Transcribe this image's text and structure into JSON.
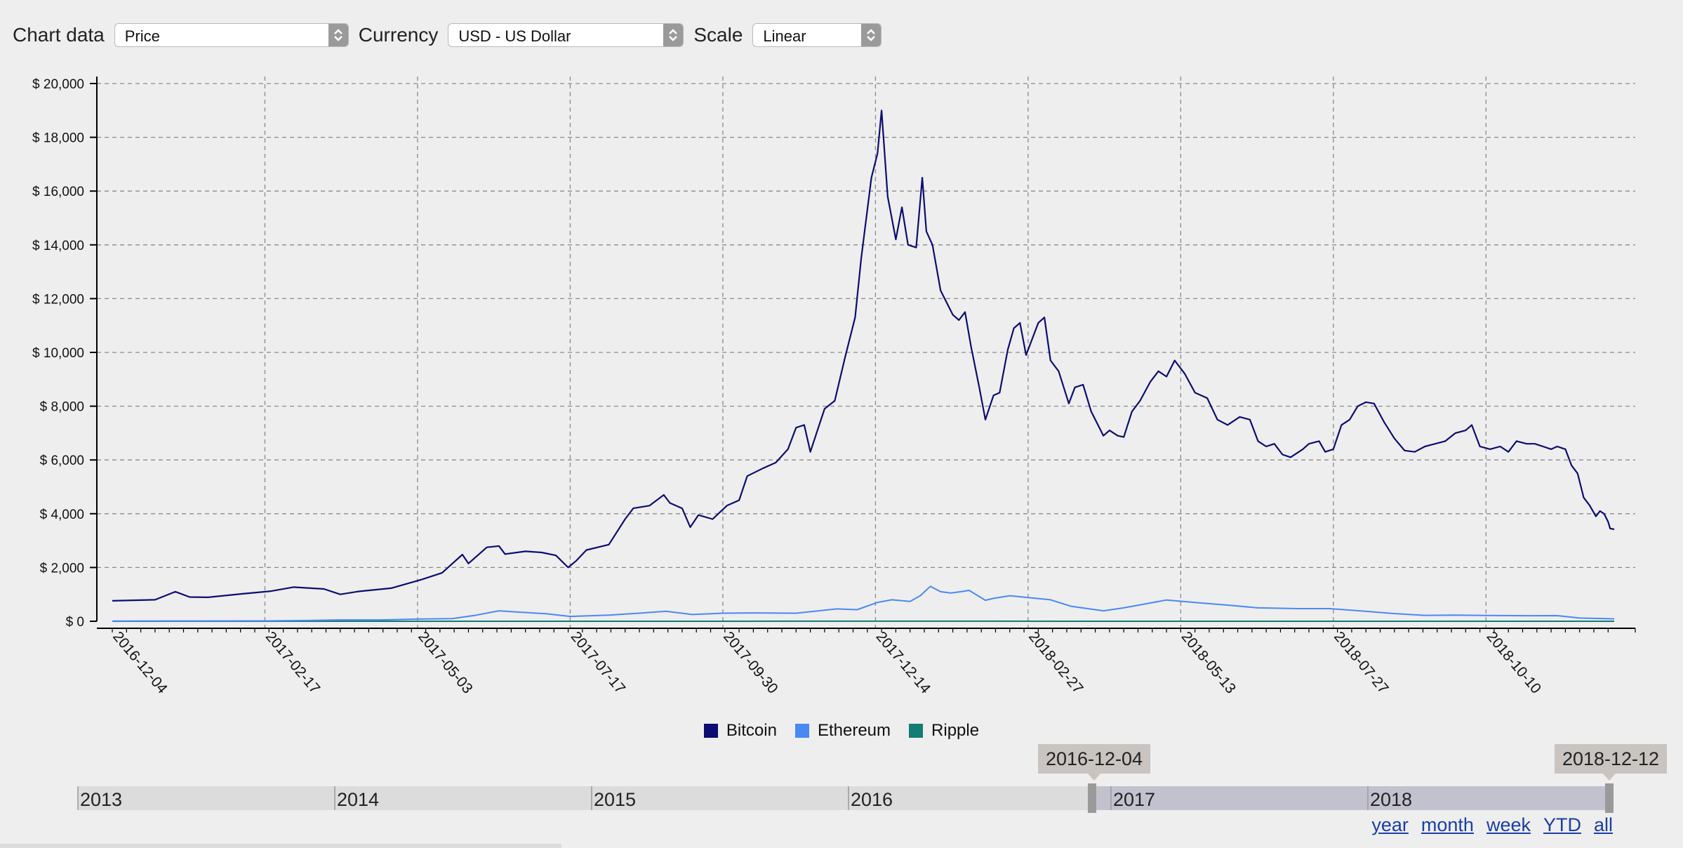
{
  "controls": {
    "chart_data_label": "Chart data",
    "chart_data_value": "Price",
    "currency_label": "Currency",
    "currency_value": "USD - US Dollar",
    "scale_label": "Scale",
    "scale_value": "Linear"
  },
  "chart_data": {
    "type": "line",
    "ylim": [
      0,
      20000
    ],
    "y_ticks": [
      0,
      2000,
      4000,
      6000,
      8000,
      10000,
      12000,
      14000,
      16000,
      18000,
      20000
    ],
    "y_tick_labels": [
      "$ 0",
      "$ 2,000",
      "$ 4,000",
      "$ 6,000",
      "$ 8,000",
      "$ 10,000",
      "$ 12,000",
      "$ 14,000",
      "$ 16,000",
      "$ 18,000",
      "$ 20,000"
    ],
    "x_range": [
      "2016-12-04",
      "2018-12-12"
    ],
    "x_tick_labels": [
      "2016-12-04",
      "2017-02-17",
      "2017-05-03",
      "2017-07-17",
      "2017-09-30",
      "2017-12-14",
      "2018-02-27",
      "2018-05-13",
      "2018-07-27",
      "2018-10-10"
    ],
    "grid": true,
    "legend_position": "bottom-center",
    "series": [
      {
        "name": "Bitcoin",
        "color": "#0b0d72",
        "points": [
          [
            "2016-12-04",
            760
          ],
          [
            "2016-12-25",
            800
          ],
          [
            "2017-01-04",
            1100
          ],
          [
            "2017-01-11",
            900
          ],
          [
            "2017-01-20",
            890
          ],
          [
            "2017-02-06",
            1020
          ],
          [
            "2017-02-20",
            1120
          ],
          [
            "2017-03-03",
            1270
          ],
          [
            "2017-03-18",
            1200
          ],
          [
            "2017-03-26",
            1000
          ],
          [
            "2017-04-04",
            1110
          ],
          [
            "2017-04-20",
            1230
          ],
          [
            "2017-05-05",
            1550
          ],
          [
            "2017-05-15",
            1800
          ],
          [
            "2017-05-25",
            2480
          ],
          [
            "2017-05-28",
            2150
          ],
          [
            "2017-06-06",
            2750
          ],
          [
            "2017-06-12",
            2800
          ],
          [
            "2017-06-15",
            2500
          ],
          [
            "2017-06-25",
            2600
          ],
          [
            "2017-07-03",
            2560
          ],
          [
            "2017-07-10",
            2450
          ],
          [
            "2017-07-16",
            2000
          ],
          [
            "2017-07-20",
            2250
          ],
          [
            "2017-07-25",
            2650
          ],
          [
            "2017-08-05",
            2850
          ],
          [
            "2017-08-13",
            3800
          ],
          [
            "2017-08-17",
            4200
          ],
          [
            "2017-08-25",
            4300
          ],
          [
            "2017-09-01",
            4700
          ],
          [
            "2017-09-04",
            4400
          ],
          [
            "2017-09-10",
            4200
          ],
          [
            "2017-09-14",
            3500
          ],
          [
            "2017-09-18",
            3950
          ],
          [
            "2017-09-25",
            3800
          ],
          [
            "2017-10-02",
            4300
          ],
          [
            "2017-10-08",
            4500
          ],
          [
            "2017-10-12",
            5400
          ],
          [
            "2017-10-20",
            5700
          ],
          [
            "2017-10-26",
            5900
          ],
          [
            "2017-11-01",
            6400
          ],
          [
            "2017-11-05",
            7200
          ],
          [
            "2017-11-09",
            7300
          ],
          [
            "2017-11-12",
            6300
          ],
          [
            "2017-11-19",
            7900
          ],
          [
            "2017-11-24",
            8200
          ],
          [
            "2017-11-29",
            9800
          ],
          [
            "2017-12-04",
            11300
          ],
          [
            "2017-12-07",
            13500
          ],
          [
            "2017-12-12",
            16500
          ],
          [
            "2017-12-15",
            17400
          ],
          [
            "2017-12-17",
            19000
          ],
          [
            "2017-12-20",
            15800
          ],
          [
            "2017-12-24",
            14200
          ],
          [
            "2017-12-27",
            15400
          ],
          [
            "2017-12-30",
            14000
          ],
          [
            "2018-01-03",
            13900
          ],
          [
            "2018-01-06",
            16500
          ],
          [
            "2018-01-08",
            14500
          ],
          [
            "2018-01-11",
            14000
          ],
          [
            "2018-01-15",
            12300
          ],
          [
            "2018-01-21",
            11400
          ],
          [
            "2018-01-24",
            11200
          ],
          [
            "2018-01-27",
            11500
          ],
          [
            "2018-01-30",
            10200
          ],
          [
            "2018-02-03",
            8700
          ],
          [
            "2018-02-06",
            7500
          ],
          [
            "2018-02-10",
            8400
          ],
          [
            "2018-02-13",
            8500
          ],
          [
            "2018-02-17",
            10100
          ],
          [
            "2018-02-20",
            10900
          ],
          [
            "2018-02-23",
            11100
          ],
          [
            "2018-02-26",
            9900
          ],
          [
            "2018-03-04",
            11100
          ],
          [
            "2018-03-07",
            11300
          ],
          [
            "2018-03-10",
            9700
          ],
          [
            "2018-03-14",
            9300
          ],
          [
            "2018-03-19",
            8100
          ],
          [
            "2018-03-22",
            8700
          ],
          [
            "2018-03-26",
            8800
          ],
          [
            "2018-03-30",
            7800
          ],
          [
            "2018-04-05",
            6900
          ],
          [
            "2018-04-08",
            7100
          ],
          [
            "2018-04-12",
            6900
          ],
          [
            "2018-04-15",
            6850
          ],
          [
            "2018-04-19",
            7800
          ],
          [
            "2018-04-23",
            8200
          ],
          [
            "2018-04-28",
            8900
          ],
          [
            "2018-05-02",
            9300
          ],
          [
            "2018-05-06",
            9100
          ],
          [
            "2018-05-10",
            9700
          ],
          [
            "2018-05-15",
            9200
          ],
          [
            "2018-05-20",
            8500
          ],
          [
            "2018-05-26",
            8300
          ],
          [
            "2018-05-31",
            7500
          ],
          [
            "2018-06-05",
            7300
          ],
          [
            "2018-06-11",
            7600
          ],
          [
            "2018-06-16",
            7500
          ],
          [
            "2018-06-20",
            6700
          ],
          [
            "2018-06-24",
            6500
          ],
          [
            "2018-06-28",
            6600
          ],
          [
            "2018-07-02",
            6200
          ],
          [
            "2018-07-06",
            6100
          ],
          [
            "2018-07-12",
            6400
          ],
          [
            "2018-07-15",
            6600
          ],
          [
            "2018-07-20",
            6700
          ],
          [
            "2018-07-23",
            6300
          ],
          [
            "2018-07-27",
            6400
          ],
          [
            "2018-07-31",
            7300
          ],
          [
            "2018-08-04",
            7500
          ],
          [
            "2018-08-08",
            8000
          ],
          [
            "2018-08-12",
            8150
          ],
          [
            "2018-08-16",
            8100
          ],
          [
            "2018-08-21",
            7400
          ],
          [
            "2018-08-26",
            6800
          ],
          [
            "2018-08-31",
            6350
          ],
          [
            "2018-09-05",
            6300
          ],
          [
            "2018-09-10",
            6500
          ],
          [
            "2018-09-15",
            6600
          ],
          [
            "2018-09-20",
            6700
          ],
          [
            "2018-09-25",
            7000
          ],
          [
            "2018-09-30",
            7100
          ],
          [
            "2018-10-03",
            7300
          ],
          [
            "2018-10-07",
            6500
          ],
          [
            "2018-10-12",
            6400
          ],
          [
            "2018-10-17",
            6500
          ],
          [
            "2018-10-21",
            6300
          ],
          [
            "2018-10-25",
            6700
          ],
          [
            "2018-10-30",
            6600
          ],
          [
            "2018-11-03",
            6600
          ],
          [
            "2018-11-07",
            6500
          ],
          [
            "2018-11-11",
            6400
          ],
          [
            "2018-11-14",
            6500
          ],
          [
            "2018-11-18",
            6400
          ],
          [
            "2018-11-21",
            5800
          ],
          [
            "2018-11-24",
            5500
          ],
          [
            "2018-11-27",
            4600
          ],
          [
            "2018-11-30",
            4300
          ],
          [
            "2018-12-03",
            3900
          ],
          [
            "2018-12-05",
            4100
          ],
          [
            "2018-12-07",
            4000
          ],
          [
            "2018-12-09",
            3700
          ],
          [
            "2018-12-10",
            3450
          ],
          [
            "2018-12-12",
            3420
          ]
        ]
      },
      {
        "name": "Ethereum",
        "color": "#4a89f2",
        "points": [
          [
            "2016-12-04",
            8
          ],
          [
            "2017-01-15",
            10
          ],
          [
            "2017-02-17",
            13
          ],
          [
            "2017-03-10",
            30
          ],
          [
            "2017-03-25",
            50
          ],
          [
            "2017-04-15",
            50
          ],
          [
            "2017-05-03",
            80
          ],
          [
            "2017-05-20",
            100
          ],
          [
            "2017-06-01",
            230
          ],
          [
            "2017-06-12",
            390
          ],
          [
            "2017-06-20",
            350
          ],
          [
            "2017-07-05",
            280
          ],
          [
            "2017-07-17",
            180
          ],
          [
            "2017-08-05",
            230
          ],
          [
            "2017-08-20",
            300
          ],
          [
            "2017-09-02",
            370
          ],
          [
            "2017-09-15",
            250
          ],
          [
            "2017-09-30",
            300
          ],
          [
            "2017-10-15",
            310
          ],
          [
            "2017-11-05",
            300
          ],
          [
            "2017-11-25",
            460
          ],
          [
            "2017-12-05",
            430
          ],
          [
            "2017-12-15",
            700
          ],
          [
            "2017-12-22",
            800
          ],
          [
            "2017-12-31",
            740
          ],
          [
            "2018-01-05",
            950
          ],
          [
            "2018-01-10",
            1300
          ],
          [
            "2018-01-15",
            1100
          ],
          [
            "2018-01-20",
            1050
          ],
          [
            "2018-01-25",
            1100
          ],
          [
            "2018-01-29",
            1150
          ],
          [
            "2018-02-06",
            780
          ],
          [
            "2018-02-10",
            850
          ],
          [
            "2018-02-18",
            950
          ],
          [
            "2018-02-27",
            880
          ],
          [
            "2018-03-10",
            800
          ],
          [
            "2018-03-20",
            560
          ],
          [
            "2018-04-05",
            390
          ],
          [
            "2018-04-15",
            500
          ],
          [
            "2018-04-28",
            680
          ],
          [
            "2018-05-06",
            790
          ],
          [
            "2018-05-20",
            700
          ],
          [
            "2018-06-05",
            600
          ],
          [
            "2018-06-20",
            500
          ],
          [
            "2018-07-10",
            470
          ],
          [
            "2018-07-25",
            470
          ],
          [
            "2018-08-10",
            380
          ],
          [
            "2018-08-25",
            290
          ],
          [
            "2018-09-10",
            220
          ],
          [
            "2018-09-25",
            230
          ],
          [
            "2018-10-10",
            215
          ],
          [
            "2018-10-30",
            205
          ],
          [
            "2018-11-14",
            210
          ],
          [
            "2018-11-25",
            120
          ],
          [
            "2018-12-12",
            90
          ]
        ]
      },
      {
        "name": "Ripple",
        "color": "#137c73",
        "points": [
          [
            "2016-12-04",
            0.007
          ],
          [
            "2017-06-01",
            0.3
          ],
          [
            "2018-01-07",
            3.2
          ],
          [
            "2018-06-01",
            0.6
          ],
          [
            "2018-12-12",
            0.3
          ]
        ]
      }
    ]
  },
  "navigator": {
    "years": [
      "2013",
      "2014",
      "2015",
      "2016",
      "2017",
      "2018"
    ],
    "start_label": "2016-12-04",
    "end_label": "2018-12-12",
    "ranges": [
      "year",
      "month",
      "week",
      "YTD",
      "all"
    ]
  }
}
